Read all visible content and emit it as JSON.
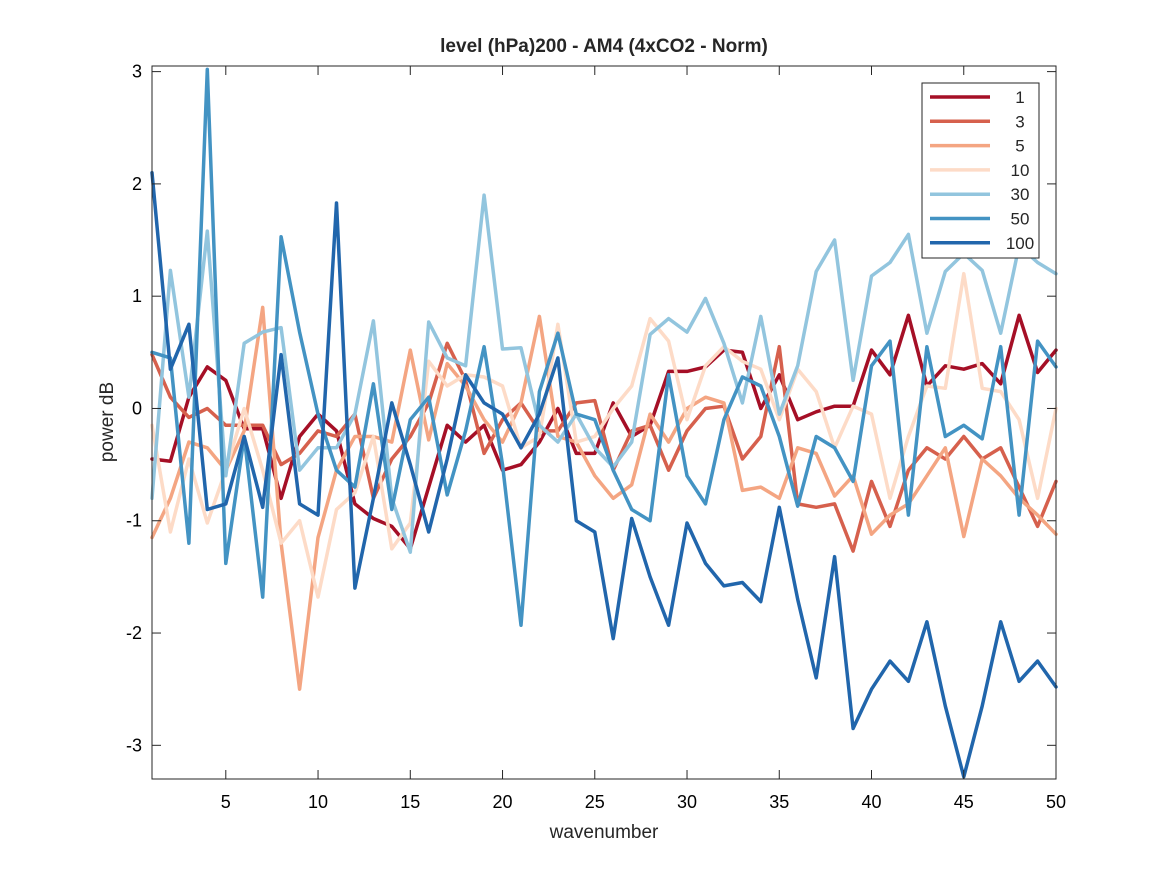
{
  "chart_data": {
    "type": "line",
    "title": "level (hPa)200 - AM4 (4xCO2 - Norm)",
    "xlabel": "wavenumber",
    "ylabel": "power dB",
    "xlim": [
      1,
      50
    ],
    "ylim": [
      -3.3,
      3.05
    ],
    "xticks": [
      5,
      10,
      15,
      20,
      25,
      30,
      35,
      40,
      45,
      50
    ],
    "yticks": [
      -3,
      -2,
      -1,
      0,
      1,
      2,
      3
    ],
    "grid": false,
    "legend_position": "top-right",
    "x": [
      1,
      2,
      3,
      4,
      5,
      6,
      7,
      8,
      9,
      10,
      11,
      12,
      13,
      14,
      15,
      16,
      17,
      18,
      19,
      20,
      21,
      22,
      23,
      24,
      25,
      26,
      27,
      28,
      29,
      30,
      31,
      32,
      33,
      34,
      35,
      36,
      37,
      38,
      39,
      40,
      41,
      42,
      43,
      44,
      45,
      46,
      47,
      48,
      49,
      50
    ],
    "series": [
      {
        "name": "1",
        "color": "#a50f26",
        "values": [
          -0.45,
          -0.47,
          0.1,
          0.37,
          0.25,
          -0.18,
          -0.18,
          -0.8,
          -0.25,
          -0.05,
          -0.2,
          -0.85,
          -0.98,
          -1.05,
          -1.25,
          -0.7,
          -0.15,
          -0.3,
          -0.15,
          -0.55,
          -0.5,
          -0.3,
          0.0,
          -0.4,
          -0.4,
          0.05,
          -0.25,
          -0.15,
          0.33,
          0.33,
          0.37,
          0.52,
          0.5,
          0.0,
          0.3,
          -0.1,
          -0.03,
          0.02,
          0.02,
          0.52,
          0.3,
          0.83,
          0.2,
          0.38,
          0.35,
          0.4,
          0.22,
          0.83,
          0.32,
          0.52
        ]
      },
      {
        "name": "3",
        "color": "#d6604d",
        "values": [
          0.48,
          0.1,
          -0.08,
          0.0,
          -0.15,
          -0.15,
          -0.15,
          -0.5,
          -0.4,
          -0.2,
          -0.25,
          -0.05,
          -0.8,
          -0.45,
          -0.25,
          0.05,
          0.58,
          0.25,
          -0.4,
          -0.1,
          0.05,
          -0.2,
          -0.2,
          0.05,
          0.07,
          -0.55,
          -0.2,
          -0.15,
          -0.55,
          -0.2,
          0.0,
          0.02,
          -0.45,
          -0.25,
          0.55,
          -0.85,
          -0.88,
          -0.85,
          -1.27,
          -0.65,
          -1.05,
          -0.55,
          -0.35,
          -0.45,
          -0.25,
          -0.45,
          -0.35,
          -0.7,
          -1.05,
          -0.65
        ]
      },
      {
        "name": "5",
        "color": "#f4a582",
        "values": [
          -1.15,
          -0.8,
          -0.3,
          -0.35,
          -0.55,
          -0.2,
          0.9,
          -1.2,
          -2.5,
          -1.15,
          -0.55,
          -0.25,
          -0.25,
          -0.3,
          0.52,
          -0.28,
          0.4,
          0.2,
          -0.1,
          -0.3,
          0.05,
          0.82,
          -0.25,
          -0.3,
          -0.6,
          -0.8,
          -0.68,
          -0.05,
          -0.3,
          0.0,
          0.1,
          0.05,
          -0.73,
          -0.7,
          -0.8,
          -0.35,
          -0.4,
          -0.78,
          -0.6,
          -1.12,
          -0.95,
          -0.85,
          -0.6,
          -0.35,
          -1.14,
          -0.45,
          -0.6,
          -0.8,
          -0.95,
          -1.12
        ]
      },
      {
        "name": "10",
        "color": "#fddbc7",
        "values": [
          -0.15,
          -1.1,
          -0.45,
          -1.02,
          -0.55,
          0.0,
          -0.55,
          -1.2,
          -1.0,
          -1.68,
          -0.9,
          -0.75,
          -0.25,
          -1.25,
          -1.02,
          0.42,
          0.2,
          0.3,
          0.28,
          0.2,
          -0.35,
          -0.25,
          0.75,
          -0.3,
          -0.25,
          0.0,
          0.2,
          0.8,
          0.6,
          -0.1,
          0.38,
          0.55,
          0.42,
          0.35,
          -0.1,
          0.35,
          0.15,
          -0.35,
          0.02,
          -0.05,
          -0.8,
          -0.25,
          0.2,
          0.18,
          1.2,
          0.18,
          0.15,
          -0.1,
          -0.8,
          0.0
        ]
      },
      {
        "name": "30",
        "color": "#92c5de",
        "values": [
          -0.8,
          1.23,
          0.1,
          1.58,
          -0.6,
          0.58,
          0.68,
          0.72,
          -0.55,
          -0.35,
          -0.35,
          -0.05,
          0.78,
          -0.8,
          -1.28,
          0.77,
          0.45,
          0.38,
          1.9,
          0.53,
          0.54,
          -0.15,
          -0.3,
          -0.05,
          -0.35,
          -0.52,
          -0.3,
          0.66,
          0.8,
          0.68,
          0.98,
          0.58,
          0.05,
          0.82,
          -0.05,
          0.38,
          1.22,
          1.5,
          0.25,
          1.18,
          1.3,
          1.55,
          0.67,
          1.22,
          1.38,
          1.23,
          0.67,
          1.45,
          1.3,
          1.2
        ]
      },
      {
        "name": "50",
        "color": "#4393c3",
        "values": [
          0.5,
          0.45,
          -1.2,
          3.02,
          -1.38,
          -0.25,
          -1.68,
          1.53,
          0.68,
          -0.05,
          -0.55,
          -0.7,
          0.22,
          -0.9,
          -0.1,
          0.1,
          -0.77,
          -0.2,
          0.55,
          -0.5,
          -1.93,
          0.15,
          0.67,
          -0.05,
          -0.1,
          -0.55,
          -0.9,
          -1.0,
          0.3,
          -0.6,
          -0.85,
          -0.1,
          0.28,
          0.2,
          -0.25,
          -0.87,
          -0.25,
          -0.35,
          -0.65,
          0.38,
          0.6,
          -0.95,
          0.55,
          -0.25,
          -0.15,
          -0.27,
          0.55,
          -0.95,
          0.6,
          0.37
        ]
      },
      {
        "name": "100",
        "color": "#2166ac",
        "values": [
          2.1,
          0.35,
          0.75,
          -0.9,
          -0.85,
          -0.25,
          -0.88,
          0.48,
          -0.85,
          -0.95,
          1.83,
          -1.6,
          -0.8,
          0.05,
          -0.5,
          -1.1,
          -0.45,
          0.3,
          0.05,
          -0.05,
          -0.35,
          -0.05,
          0.45,
          -1.0,
          -1.1,
          -2.05,
          -0.98,
          -1.5,
          -1.93,
          -1.02,
          -1.38,
          -1.58,
          -1.55,
          -1.72,
          -0.88,
          -1.7,
          -2.4,
          -1.32,
          -2.85,
          -2.5,
          -2.25,
          -2.43,
          -1.9,
          -2.65,
          -3.28,
          -2.65,
          -1.9,
          -2.43,
          -2.25,
          -2.48
        ]
      }
    ]
  }
}
